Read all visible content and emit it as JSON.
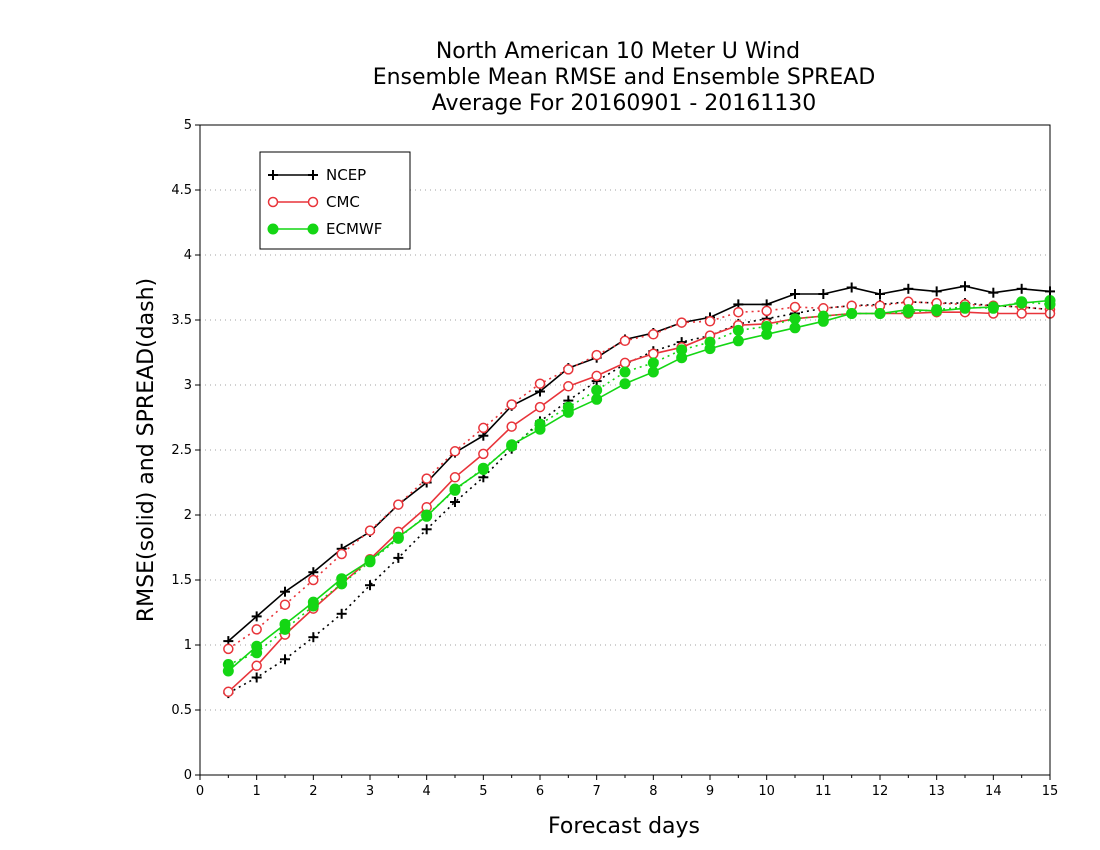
{
  "chart_data": {
    "type": "line",
    "title_lines": [
      "North American 10 Meter U Wind",
      "Ensemble Mean RMSE and Ensemble SPREAD",
      "Average For 20160901 - 20161130"
    ],
    "xlabel": "Forecast days",
    "ylabel": "RMSE(solid) and SPREAD(dash)",
    "xlim": [
      0,
      15
    ],
    "ylim": [
      0,
      5
    ],
    "x_ticks": [
      "0",
      "1",
      "2",
      "3",
      "4",
      "5",
      "6",
      "7",
      "8",
      "9",
      "10",
      "11",
      "12",
      "13",
      "14",
      "15"
    ],
    "y_ticks": [
      "0",
      "0.5",
      "1",
      "1.5",
      "2",
      "2.5",
      "3",
      "3.5",
      "4",
      "4.5",
      "5"
    ],
    "grid": true,
    "legend_position": "top-left",
    "x": [
      0.5,
      1,
      1.5,
      2,
      2.5,
      3,
      3.5,
      4,
      4.5,
      5,
      5.5,
      6,
      6.5,
      7,
      7.5,
      8,
      8.5,
      9,
      9.5,
      10,
      10.5,
      11,
      11.5,
      12,
      12.5,
      13,
      13.5,
      14,
      14.5,
      15
    ],
    "series": [
      {
        "name": "NCEP",
        "color": "#000000",
        "marker": "plus",
        "rmse": [
          1.03,
          1.22,
          1.41,
          1.56,
          1.74,
          1.87,
          2.08,
          2.25,
          2.48,
          2.61,
          2.84,
          2.95,
          3.13,
          3.21,
          3.35,
          3.4,
          3.48,
          3.52,
          3.62,
          3.62,
          3.7,
          3.7,
          3.75,
          3.7,
          3.74,
          3.72,
          3.76,
          3.71,
          3.74,
          3.72
        ],
        "spread": [
          0.63,
          0.75,
          0.89,
          1.06,
          1.24,
          1.46,
          1.67,
          1.89,
          2.1,
          2.29,
          2.51,
          2.72,
          2.88,
          3.03,
          3.16,
          3.26,
          3.33,
          3.38,
          3.47,
          3.51,
          3.55,
          3.59,
          3.61,
          3.62,
          3.64,
          3.63,
          3.63,
          3.61,
          3.6,
          3.58
        ]
      },
      {
        "name": "CMC",
        "color": "#e8343a",
        "marker": "open-circle",
        "rmse": [
          0.64,
          0.84,
          1.08,
          1.28,
          1.47,
          1.66,
          1.87,
          2.06,
          2.29,
          2.47,
          2.68,
          2.83,
          2.99,
          3.07,
          3.17,
          3.24,
          3.29,
          3.38,
          3.46,
          3.47,
          3.51,
          3.53,
          3.55,
          3.55,
          3.55,
          3.56,
          3.56,
          3.55,
          3.55,
          3.55
        ],
        "spread": [
          0.97,
          1.12,
          1.31,
          1.5,
          1.7,
          1.88,
          2.08,
          2.28,
          2.49,
          2.67,
          2.85,
          3.01,
          3.12,
          3.23,
          3.34,
          3.39,
          3.48,
          3.49,
          3.56,
          3.57,
          3.6,
          3.59,
          3.61,
          3.61,
          3.64,
          3.63,
          3.62,
          3.61,
          3.6,
          3.58
        ]
      },
      {
        "name": "ECMWF",
        "color": "#14d614",
        "marker": "filled-circle",
        "rmse": [
          0.8,
          0.99,
          1.16,
          1.33,
          1.51,
          1.65,
          1.83,
          1.99,
          2.2,
          2.35,
          2.54,
          2.66,
          2.79,
          2.89,
          3.01,
          3.1,
          3.21,
          3.28,
          3.34,
          3.39,
          3.44,
          3.49,
          3.55,
          3.55,
          3.58,
          3.57,
          3.59,
          3.6,
          3.63,
          3.65
        ],
        "spread": [
          0.85,
          0.94,
          1.12,
          1.3,
          1.47,
          1.64,
          1.82,
          2.0,
          2.19,
          2.36,
          2.53,
          2.7,
          2.83,
          2.96,
          3.1,
          3.17,
          3.27,
          3.33,
          3.42,
          3.45,
          3.51,
          3.53,
          3.55,
          3.55,
          3.56,
          3.58,
          3.6,
          3.59,
          3.64,
          3.62
        ]
      }
    ]
  }
}
